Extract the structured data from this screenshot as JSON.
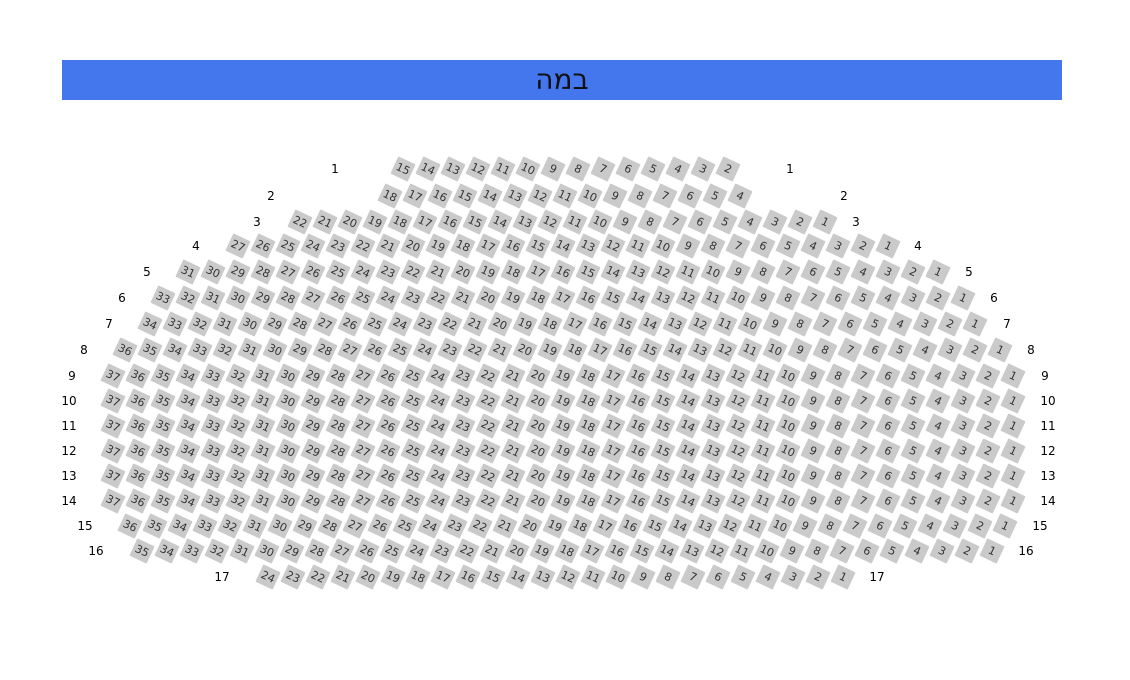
{
  "stage": {
    "label": "במה",
    "color": "#4477ee"
  },
  "seat_color": "#cacaca",
  "rows": [
    {
      "label": "1",
      "from": 15,
      "to": 2
    },
    {
      "label": "2",
      "from": 18,
      "to": 4
    },
    {
      "label": "3",
      "from": 22,
      "to": 1
    },
    {
      "label": "4",
      "from": 27,
      "to": 1
    },
    {
      "label": "5",
      "from": 31,
      "to": 1
    },
    {
      "label": "6",
      "from": 33,
      "to": 1
    },
    {
      "label": "7",
      "from": 34,
      "to": 1
    },
    {
      "label": "8",
      "from": 36,
      "to": 1
    },
    {
      "label": "9",
      "from": 37,
      "to": 1
    },
    {
      "label": "10",
      "from": 37,
      "to": 1
    },
    {
      "label": "11",
      "from": 37,
      "to": 1
    },
    {
      "label": "12",
      "from": 37,
      "to": 1
    },
    {
      "label": "13",
      "from": 37,
      "to": 1
    },
    {
      "label": "14",
      "from": 37,
      "to": 1
    },
    {
      "label": "15",
      "from": 36,
      "to": 1
    },
    {
      "label": "16",
      "from": 35,
      "to": 1
    },
    {
      "label": "17",
      "from": 24,
      "to": 1
    }
  ]
}
